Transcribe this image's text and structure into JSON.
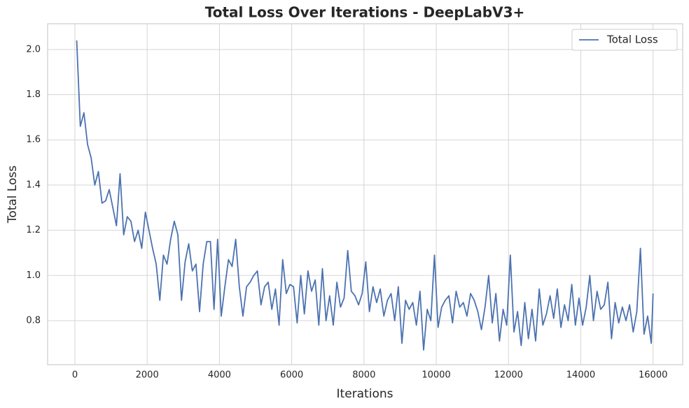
{
  "chart_data": {
    "type": "line",
    "title": "Total Loss Over Iterations - DeepLabV3+",
    "x_label": "Iterations",
    "y_label": "Total Loss",
    "x": [
      50,
      150,
      250,
      350,
      450,
      550,
      650,
      750,
      850,
      950,
      1050,
      1150,
      1250,
      1350,
      1450,
      1550,
      1650,
      1750,
      1850,
      1950,
      2050,
      2150,
      2250,
      2350,
      2450,
      2550,
      2650,
      2750,
      2850,
      2950,
      3050,
      3150,
      3250,
      3350,
      3450,
      3550,
      3650,
      3750,
      3850,
      3950,
      4050,
      4150,
      4250,
      4350,
      4450,
      4550,
      4650,
      4750,
      4850,
      4950,
      5050,
      5150,
      5250,
      5350,
      5450,
      5550,
      5650,
      5750,
      5850,
      5950,
      6050,
      6150,
      6250,
      6350,
      6450,
      6550,
      6650,
      6750,
      6850,
      6950,
      7050,
      7150,
      7250,
      7350,
      7450,
      7550,
      7650,
      7750,
      7850,
      7950,
      8050,
      8150,
      8250,
      8350,
      8450,
      8550,
      8650,
      8750,
      8850,
      8950,
      9050,
      9150,
      9250,
      9350,
      9450,
      9550,
      9650,
      9750,
      9850,
      9950,
      10050,
      10150,
      10250,
      10350,
      10450,
      10550,
      10650,
      10750,
      10850,
      10950,
      11050,
      11150,
      11250,
      11350,
      11450,
      11550,
      11650,
      11750,
      11850,
      11950,
      12050,
      12150,
      12250,
      12350,
      12450,
      12550,
      12650,
      12750,
      12850,
      12950,
      13050,
      13150,
      13250,
      13350,
      13450,
      13550,
      13650,
      13750,
      13850,
      13950,
      14050,
      14150,
      14250,
      14350,
      14450,
      14550,
      14650,
      14750,
      14850,
      14950,
      15050,
      15150,
      15250,
      15350,
      15450,
      15550,
      15650,
      15750,
      15850,
      15950,
      16000
    ],
    "series": [
      {
        "name": "Total Loss",
        "color": "#4c72b0",
        "values": [
          2.04,
          1.66,
          1.72,
          1.58,
          1.52,
          1.4,
          1.46,
          1.32,
          1.33,
          1.38,
          1.3,
          1.22,
          1.45,
          1.18,
          1.26,
          1.24,
          1.15,
          1.2,
          1.12,
          1.28,
          1.2,
          1.12,
          1.05,
          0.89,
          1.09,
          1.05,
          1.16,
          1.24,
          1.18,
          0.89,
          1.06,
          1.14,
          1.02,
          1.05,
          0.84,
          1.05,
          1.15,
          1.15,
          0.85,
          1.16,
          0.82,
          0.95,
          1.07,
          1.04,
          1.16,
          0.95,
          0.82,
          0.95,
          0.97,
          1.0,
          1.02,
          0.87,
          0.95,
          0.97,
          0.85,
          0.94,
          0.78,
          1.07,
          0.92,
          0.96,
          0.95,
          0.79,
          1.0,
          0.83,
          1.02,
          0.93,
          0.98,
          0.78,
          1.03,
          0.8,
          0.91,
          0.78,
          0.97,
          0.86,
          0.9,
          1.11,
          0.93,
          0.91,
          0.87,
          0.92,
          1.06,
          0.84,
          0.95,
          0.88,
          0.94,
          0.82,
          0.89,
          0.92,
          0.8,
          0.95,
          0.7,
          0.89,
          0.85,
          0.88,
          0.78,
          0.93,
          0.67,
          0.85,
          0.8,
          1.09,
          0.77,
          0.86,
          0.89,
          0.91,
          0.79,
          0.93,
          0.86,
          0.88,
          0.82,
          0.92,
          0.89,
          0.84,
          0.76,
          0.86,
          1.0,
          0.79,
          0.92,
          0.71,
          0.85,
          0.78,
          1.09,
          0.75,
          0.84,
          0.69,
          0.88,
          0.72,
          0.85,
          0.71,
          0.94,
          0.78,
          0.83,
          0.91,
          0.81,
          0.94,
          0.77,
          0.87,
          0.8,
          0.96,
          0.78,
          0.9,
          0.78,
          0.86,
          1.0,
          0.8,
          0.93,
          0.85,
          0.87,
          0.97,
          0.72,
          0.88,
          0.79,
          0.86,
          0.8,
          0.87,
          0.75,
          0.84,
          1.12,
          0.74,
          0.82,
          0.7,
          0.92
        ]
      }
    ],
    "xlim": [
      -755,
      16820
    ],
    "ylim": [
      0.605,
      2.114
    ],
    "xticks": [
      0,
      2000,
      4000,
      6000,
      8000,
      10000,
      12000,
      14000,
      16000
    ],
    "yticks": [
      0.8,
      {
        "value": 1.0,
        "label": "1.0"
      },
      1.2,
      1.4,
      1.6,
      1.8,
      {
        "value": 2.0,
        "label": "2.0"
      }
    ],
    "grid": true,
    "legend": "upper right"
  }
}
